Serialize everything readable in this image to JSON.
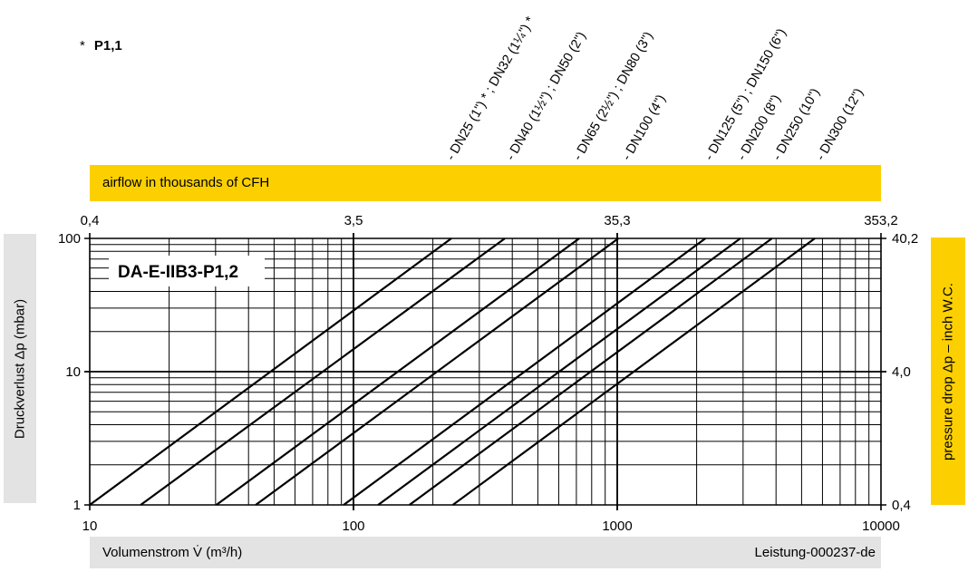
{
  "note": {
    "marker": "*",
    "text": "P1,1"
  },
  "top_bar_label": "airflow in thousands of CFH",
  "left_label": "Druckverlust Δp (mbar)",
  "right_label": "pressure drop Δp – inch W.C.",
  "bottom_left_label": "Volumenstrom V̇ (m³/h)",
  "bottom_right_label": "Leistung-000237-de",
  "colors": {
    "accent": "#fcd000",
    "panel": "#e3e3e3",
    "line": "#000000"
  },
  "chart_data": {
    "type": "line",
    "title": "DA-E-IIB3-P1,2",
    "x_scale": "log",
    "y_scale": "log",
    "xlim": [
      10,
      10000
    ],
    "ylim": [
      1,
      100
    ],
    "x_ticks": [
      "10",
      "100",
      "1000",
      "10000"
    ],
    "y_ticks": [
      "1",
      "10",
      "100"
    ],
    "top_axis_ticks": [
      {
        "at": 10,
        "label": "0,4"
      },
      {
        "at": 100,
        "label": "3,5"
      },
      {
        "at": 1000,
        "label": "35,3"
      },
      {
        "at": 10000,
        "label": "353,2"
      }
    ],
    "right_axis_ticks": [
      {
        "at": 1,
        "label": "0,4"
      },
      {
        "at": 10,
        "label": "4,0"
      },
      {
        "at": 100,
        "label": "40,2"
      }
    ],
    "grid": true,
    "series": [
      {
        "name": "- DN25 (1\") * ; DN32 (1¼\") *",
        "x": [
          10,
          235
        ],
        "y": [
          1,
          100
        ]
      },
      {
        "name": "- DN40 (1½\") ; DN50 (2\")",
        "x": [
          15.6,
          375
        ],
        "y": [
          1,
          100
        ]
      },
      {
        "name": "- DN65 (2½\") ; DN80 (3\")",
        "x": [
          30.2,
          718
        ],
        "y": [
          1,
          100
        ]
      },
      {
        "name": "- DN100 (4\")",
        "x": [
          42.6,
          1010
        ],
        "y": [
          1,
          100
        ]
      },
      {
        "name": "- DN125 (5\") ; DN150 (6\")",
        "x": [
          91.8,
          2160
        ],
        "y": [
          1,
          100
        ]
      },
      {
        "name": "- DN200 (8\")",
        "x": [
          124,
          2930
        ],
        "y": [
          1,
          100
        ]
      },
      {
        "name": "- DN250 (10\")",
        "x": [
          163,
          3860
        ],
        "y": [
          1,
          100
        ]
      },
      {
        "name": "- DN300 (12\")",
        "x": [
          238,
          5610
        ],
        "y": [
          1,
          100
        ]
      }
    ]
  }
}
